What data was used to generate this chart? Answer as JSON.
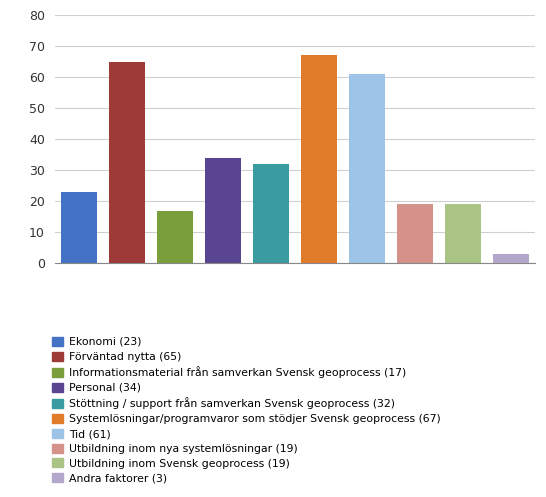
{
  "values": [
    23,
    65,
    17,
    34,
    32,
    67,
    61,
    19,
    19,
    3
  ],
  "bar_colors": [
    "#4472C4",
    "#9E3A38",
    "#7B9E3C",
    "#5A4590",
    "#3A9BA0",
    "#E07B2A",
    "#9DC3E6",
    "#D4928A",
    "#A9C484",
    "#B3A8CC"
  ],
  "legend_labels": [
    "Ekonomi (23)",
    "Förväntad nytta (65)",
    "Informationsmaterial från samverkan Svensk geoprocess (17)",
    "Personal (34)",
    "Stöttning / support från samverkan Svensk geoprocess (32)",
    "Systemlösningar/programvaror som stödjer Svensk geoprocess (67)",
    "Tid (61)",
    "Utbildning inom nya systemlösningar (19)",
    "Utbildning inom Svensk geoprocess (19)",
    "Andra faktorer (3)"
  ],
  "ylim": [
    0,
    80
  ],
  "yticks": [
    0,
    10,
    20,
    30,
    40,
    50,
    60,
    70,
    80
  ],
  "background_color": "#ffffff",
  "grid_color": "#d0d0d0",
  "legend_fontsize": 7.8,
  "bar_width": 0.75,
  "figsize": [
    5.46,
    4.97
  ],
  "dpi": 100
}
